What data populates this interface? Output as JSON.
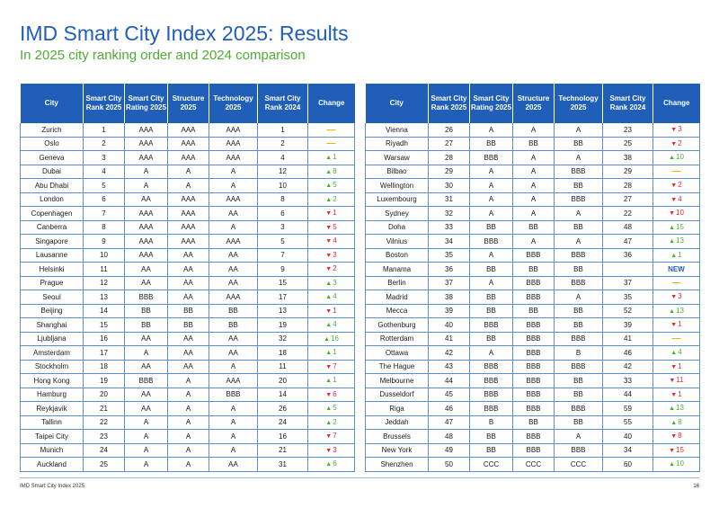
{
  "page": {
    "title": "IMD Smart City Index 2025: Results",
    "subtitle": "In 2025 city ranking order and 2024 comparison",
    "footer_left": "IMD Smart City Index 2025",
    "page_number": "16"
  },
  "columns": [
    "City",
    "Smart City Rank 2025",
    "Smart City Rating 2025",
    "Structure 2025",
    "Technology 2025",
    "Smart City Rank 2024",
    "Change"
  ],
  "colors": {
    "header_bg": "#1f5fb8",
    "up": "#4cae33",
    "down": "#e0282e",
    "same": "#f2b500"
  },
  "rows": [
    {
      "city": "Zurich",
      "rank": "1",
      "rating": "AAA",
      "structure": "AAA",
      "technology": "AAA",
      "rank2024": "1",
      "dir": "same",
      "delta": "—"
    },
    {
      "city": "Oslo",
      "rank": "2",
      "rating": "AAA",
      "structure": "AAA",
      "technology": "AAA",
      "rank2024": "2",
      "dir": "same",
      "delta": "—"
    },
    {
      "city": "Geneva",
      "rank": "3",
      "rating": "AAA",
      "structure": "AAA",
      "technology": "AAA",
      "rank2024": "4",
      "dir": "up",
      "delta": "1"
    },
    {
      "city": "Dubai",
      "rank": "4",
      "rating": "A",
      "structure": "A",
      "technology": "A",
      "rank2024": "12",
      "dir": "up",
      "delta": "8"
    },
    {
      "city": "Abu Dhabi",
      "rank": "5",
      "rating": "A",
      "structure": "A",
      "technology": "A",
      "rank2024": "10",
      "dir": "up",
      "delta": "5"
    },
    {
      "city": "London",
      "rank": "6",
      "rating": "AA",
      "structure": "AAA",
      "technology": "AAA",
      "rank2024": "8",
      "dir": "up",
      "delta": "2"
    },
    {
      "city": "Copenhagen",
      "rank": "7",
      "rating": "AAA",
      "structure": "AAA",
      "technology": "AA",
      "rank2024": "6",
      "dir": "down",
      "delta": "1"
    },
    {
      "city": "Canberra",
      "rank": "8",
      "rating": "AAA",
      "structure": "AAA",
      "technology": "A",
      "rank2024": "3",
      "dir": "down",
      "delta": "5"
    },
    {
      "city": "Singapore",
      "rank": "9",
      "rating": "AAA",
      "structure": "AAA",
      "technology": "AAA",
      "rank2024": "5",
      "dir": "down",
      "delta": "4"
    },
    {
      "city": "Lausanne",
      "rank": "10",
      "rating": "AAA",
      "structure": "AA",
      "technology": "AA",
      "rank2024": "7",
      "dir": "down",
      "delta": "3"
    },
    {
      "city": "Helsinki",
      "rank": "11",
      "rating": "AA",
      "structure": "AA",
      "technology": "AA",
      "rank2024": "9",
      "dir": "down",
      "delta": "2"
    },
    {
      "city": "Prague",
      "rank": "12",
      "rating": "AA",
      "structure": "AA",
      "technology": "AA",
      "rank2024": "15",
      "dir": "up",
      "delta": "3"
    },
    {
      "city": "Seoul",
      "rank": "13",
      "rating": "BBB",
      "structure": "AA",
      "technology": "AAA",
      "rank2024": "17",
      "dir": "up",
      "delta": "4"
    },
    {
      "city": "Beijing",
      "rank": "14",
      "rating": "BB",
      "structure": "BB",
      "technology": "BB",
      "rank2024": "13",
      "dir": "down",
      "delta": "1"
    },
    {
      "city": "Shanghai",
      "rank": "15",
      "rating": "BB",
      "structure": "BB",
      "technology": "BB",
      "rank2024": "19",
      "dir": "up",
      "delta": "4"
    },
    {
      "city": "Ljubljana",
      "rank": "16",
      "rating": "AA",
      "structure": "AA",
      "technology": "AA",
      "rank2024": "32",
      "dir": "up",
      "delta": "16"
    },
    {
      "city": "Amsterdam",
      "rank": "17",
      "rating": "A",
      "structure": "AA",
      "technology": "AA",
      "rank2024": "18",
      "dir": "up",
      "delta": "1"
    },
    {
      "city": "Stockholm",
      "rank": "18",
      "rating": "AA",
      "structure": "AA",
      "technology": "A",
      "rank2024": "11",
      "dir": "down",
      "delta": "7"
    },
    {
      "city": "Hong Kong",
      "rank": "19",
      "rating": "BBB",
      "structure": "A",
      "technology": "AAA",
      "rank2024": "20",
      "dir": "up",
      "delta": "1"
    },
    {
      "city": "Hamburg",
      "rank": "20",
      "rating": "AA",
      "structure": "A",
      "technology": "BBB",
      "rank2024": "14",
      "dir": "down",
      "delta": "6"
    },
    {
      "city": "Reykjavik",
      "rank": "21",
      "rating": "AA",
      "structure": "A",
      "technology": "A",
      "rank2024": "26",
      "dir": "up",
      "delta": "5"
    },
    {
      "city": "Tallinn",
      "rank": "22",
      "rating": "A",
      "structure": "A",
      "technology": "A",
      "rank2024": "24",
      "dir": "up",
      "delta": "2"
    },
    {
      "city": "Taipei City",
      "rank": "23",
      "rating": "A",
      "structure": "A",
      "technology": "A",
      "rank2024": "16",
      "dir": "down",
      "delta": "7"
    },
    {
      "city": "Munich",
      "rank": "24",
      "rating": "A",
      "structure": "A",
      "technology": "A",
      "rank2024": "21",
      "dir": "down",
      "delta": "3"
    },
    {
      "city": "Auckland",
      "rank": "25",
      "rating": "A",
      "structure": "A",
      "technology": "AA",
      "rank2024": "31",
      "dir": "up",
      "delta": "6"
    },
    {
      "city": "Vienna",
      "rank": "26",
      "rating": "A",
      "structure": "A",
      "technology": "A",
      "rank2024": "23",
      "dir": "down",
      "delta": "3"
    },
    {
      "city": "Riyadh",
      "rank": "27",
      "rating": "BB",
      "structure": "BB",
      "technology": "BB",
      "rank2024": "25",
      "dir": "down",
      "delta": "2"
    },
    {
      "city": "Warsaw",
      "rank": "28",
      "rating": "BBB",
      "structure": "A",
      "technology": "A",
      "rank2024": "38",
      "dir": "up",
      "delta": "10"
    },
    {
      "city": "Bilbao",
      "rank": "29",
      "rating": "A",
      "structure": "A",
      "technology": "BBB",
      "rank2024": "29",
      "dir": "same",
      "delta": "—"
    },
    {
      "city": "Wellington",
      "rank": "30",
      "rating": "A",
      "structure": "A",
      "technology": "BB",
      "rank2024": "28",
      "dir": "down",
      "delta": "2"
    },
    {
      "city": "Luxembourg",
      "rank": "31",
      "rating": "A",
      "structure": "A",
      "technology": "BBB",
      "rank2024": "27",
      "dir": "down",
      "delta": "4"
    },
    {
      "city": "Sydney",
      "rank": "32",
      "rating": "A",
      "structure": "A",
      "technology": "A",
      "rank2024": "22",
      "dir": "down",
      "delta": "10"
    },
    {
      "city": "Doha",
      "rank": "33",
      "rating": "BB",
      "structure": "BB",
      "technology": "BB",
      "rank2024": "48",
      "dir": "up",
      "delta": "15"
    },
    {
      "city": "Vilnius",
      "rank": "34",
      "rating": "BBB",
      "structure": "A",
      "technology": "A",
      "rank2024": "47",
      "dir": "up",
      "delta": "13"
    },
    {
      "city": "Boston",
      "rank": "35",
      "rating": "A",
      "structure": "BBB",
      "technology": "BBB",
      "rank2024": "36",
      "dir": "up",
      "delta": "1"
    },
    {
      "city": "Manama",
      "rank": "36",
      "rating": "BB",
      "structure": "BB",
      "technology": "BB",
      "rank2024": "",
      "dir": "new",
      "delta": "NEW"
    },
    {
      "city": "Berlin",
      "rank": "37",
      "rating": "A",
      "structure": "BBB",
      "technology": "BBB",
      "rank2024": "37",
      "dir": "same",
      "delta": "—"
    },
    {
      "city": "Madrid",
      "rank": "38",
      "rating": "BB",
      "structure": "BBB",
      "technology": "A",
      "rank2024": "35",
      "dir": "down",
      "delta": "3"
    },
    {
      "city": "Mecca",
      "rank": "39",
      "rating": "BB",
      "structure": "BB",
      "technology": "BB",
      "rank2024": "52",
      "dir": "up",
      "delta": "13"
    },
    {
      "city": "Gothenburg",
      "rank": "40",
      "rating": "BBB",
      "structure": "BBB",
      "technology": "BB",
      "rank2024": "39",
      "dir": "down",
      "delta": "1"
    },
    {
      "city": "Rotterdam",
      "rank": "41",
      "rating": "BB",
      "structure": "BBB",
      "technology": "BBB",
      "rank2024": "41",
      "dir": "same",
      "delta": "—"
    },
    {
      "city": "Ottawa",
      "rank": "42",
      "rating": "A",
      "structure": "BBB",
      "technology": "B",
      "rank2024": "46",
      "dir": "up",
      "delta": "4"
    },
    {
      "city": "The Hague",
      "rank": "43",
      "rating": "BBB",
      "structure": "BBB",
      "technology": "BBB",
      "rank2024": "42",
      "dir": "down",
      "delta": "1"
    },
    {
      "city": "Melbourne",
      "rank": "44",
      "rating": "BBB",
      "structure": "BBB",
      "technology": "BB",
      "rank2024": "33",
      "dir": "down",
      "delta": "11"
    },
    {
      "city": "Dusseldorf",
      "rank": "45",
      "rating": "BBB",
      "structure": "BBB",
      "technology": "BB",
      "rank2024": "44",
      "dir": "down",
      "delta": "1"
    },
    {
      "city": "Riga",
      "rank": "46",
      "rating": "BBB",
      "structure": "BBB",
      "technology": "BBB",
      "rank2024": "59",
      "dir": "up",
      "delta": "13"
    },
    {
      "city": "Jeddah",
      "rank": "47",
      "rating": "B",
      "structure": "BB",
      "technology": "BB",
      "rank2024": "55",
      "dir": "up",
      "delta": "8"
    },
    {
      "city": "Brussels",
      "rank": "48",
      "rating": "BB",
      "structure": "BBB",
      "technology": "A",
      "rank2024": "40",
      "dir": "down",
      "delta": "8"
    },
    {
      "city": "New York",
      "rank": "49",
      "rating": "BB",
      "structure": "BBB",
      "technology": "BBB",
      "rank2024": "34",
      "dir": "down",
      "delta": "15"
    },
    {
      "city": "Shenzhen",
      "rank": "50",
      "rating": "CCC",
      "structure": "CCC",
      "technology": "CCC",
      "rank2024": "60",
      "dir": "up",
      "delta": "10"
    }
  ]
}
